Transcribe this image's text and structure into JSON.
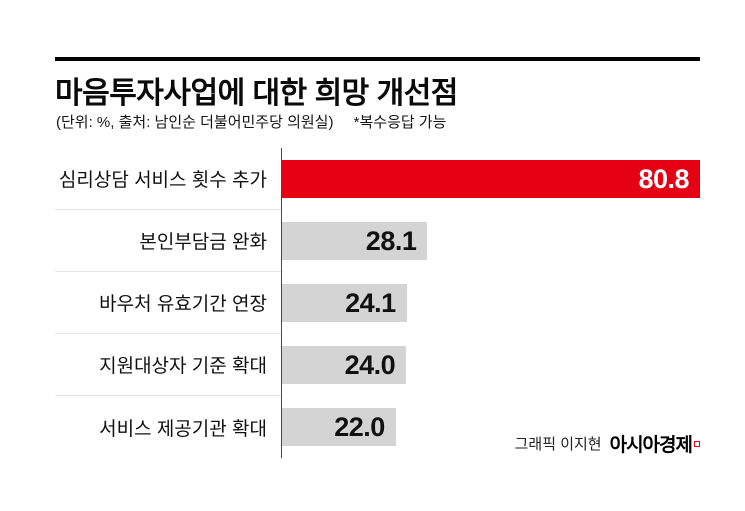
{
  "header": {
    "title": "마음투자사업에 대한 희망 개선점",
    "subtitle": "(단위: %, 출처: 남인순 더불어민주당 의원실)",
    "note": "*복수응답 가능"
  },
  "chart_data": {
    "type": "bar",
    "orientation": "horizontal",
    "unit": "%",
    "title": "마음투자사업에 대한 희망 개선점",
    "categories": [
      "심리상담 서비스 횟수 추가",
      "본인부담금 완화",
      "바우처 유효기간 연장",
      "지원대상자 기준 확대",
      "서비스 제공기관 확대"
    ],
    "values": [
      80.8,
      28.1,
      24.1,
      24.0,
      22.0
    ],
    "value_labels": [
      "80.8",
      "28.1",
      "24.1",
      "24.0",
      "22.0"
    ],
    "max_value": 80.8,
    "xlim": [
      0,
      80.8
    ],
    "bar_colors": [
      "#e60013",
      "#d4d4d4",
      "#d4d4d4",
      "#d4d4d4",
      "#d4d4d4"
    ],
    "highlight_color": "#e60013",
    "default_color": "#d4d4d4",
    "grid": false,
    "legend": false
  },
  "footer": {
    "credit": "그래픽 이지현",
    "brand": "아시아경제"
  }
}
